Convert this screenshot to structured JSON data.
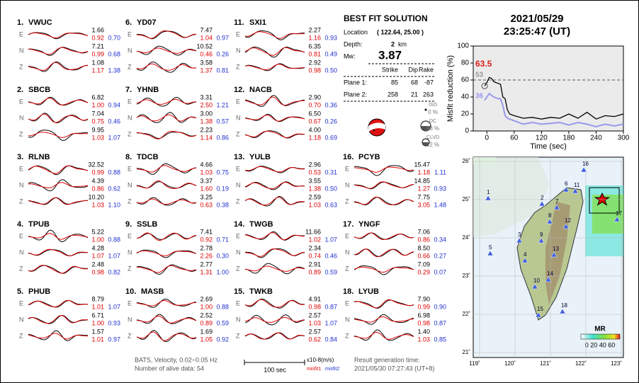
{
  "header": {
    "date": "2021/05/29",
    "time": "23:25:47  (UT)"
  },
  "stations": [
    {
      "id": "1.",
      "name": "VWUC",
      "components": [
        {
          "comp": "E",
          "amp": "1.66",
          "misfit1": "0.92",
          "misfit2": "0.70"
        },
        {
          "comp": "N",
          "amp": "7.21",
          "misfit1": "0.99",
          "misfit2": "0.68"
        },
        {
          "comp": "Z",
          "amp": "1.08",
          "misfit1": "1.17",
          "misfit2": "1.38"
        }
      ]
    },
    {
      "id": "2.",
      "name": "SBCB",
      "components": [
        {
          "comp": "E",
          "amp": "6.82",
          "misfit1": "1.00",
          "misfit2": "0.94"
        },
        {
          "comp": "N",
          "amp": "7.04",
          "misfit1": "0.75",
          "misfit2": "0.46"
        },
        {
          "comp": "Z",
          "amp": "9.95",
          "misfit1": "1.03",
          "misfit2": "1.07"
        }
      ]
    },
    {
      "id": "3.",
      "name": "RLNB",
      "components": [
        {
          "comp": "E",
          "amp": "32.52",
          "misfit1": "0.99",
          "misfit2": "0.88"
        },
        {
          "comp": "N",
          "amp": "4.39",
          "misfit1": "0.86",
          "misfit2": "0.62"
        },
        {
          "comp": "Z",
          "amp": "10.20",
          "misfit1": "1.03",
          "misfit2": "1.10"
        }
      ]
    },
    {
      "id": "4.",
      "name": "TPUB",
      "components": [
        {
          "comp": "E",
          "amp": "5.22",
          "misfit1": "1.00",
          "misfit2": "0.88"
        },
        {
          "comp": "N",
          "amp": "4.28",
          "misfit1": "1.07",
          "misfit2": "1.07"
        },
        {
          "comp": "Z",
          "amp": "2.48",
          "misfit1": "0.98",
          "misfit2": "0.82"
        }
      ]
    },
    {
      "id": "5.",
      "name": "PHUB",
      "components": [
        {
          "comp": "E",
          "amp": "8.79",
          "misfit1": "1.01",
          "misfit2": "1.07"
        },
        {
          "comp": "N",
          "amp": "6.71",
          "misfit1": "1.00",
          "misfit2": "0.93"
        },
        {
          "comp": "Z",
          "amp": "1.57",
          "misfit1": "1.01",
          "misfit2": "0.97"
        }
      ]
    },
    {
      "id": "6.",
      "name": "YD07",
      "components": [
        {
          "comp": "E",
          "amp": "7.47",
          "misfit1": "1.04",
          "misfit2": "0.97"
        },
        {
          "comp": "N",
          "amp": "10.52",
          "misfit1": "0.46",
          "misfit2": "0.26"
        },
        {
          "comp": "Z",
          "amp": "3.58",
          "misfit1": "1.37",
          "misfit2": "0.81"
        }
      ]
    },
    {
      "id": "7.",
      "name": "YHNB",
      "components": [
        {
          "comp": "E",
          "amp": "3.31",
          "misfit1": "2.50",
          "misfit2": "1.21"
        },
        {
          "comp": "N",
          "amp": "3.00",
          "misfit1": "1.38",
          "misfit2": "0.57"
        },
        {
          "comp": "Z",
          "amp": "2.23",
          "misfit1": "1.14",
          "misfit2": "0.86"
        }
      ]
    },
    {
      "id": "8.",
      "name": "TDCB",
      "components": [
        {
          "comp": "E",
          "amp": "4.66",
          "misfit1": "1.03",
          "misfit2": "0.75"
        },
        {
          "comp": "N",
          "amp": "3.37",
          "misfit1": "1.60",
          "misfit2": "0.19"
        },
        {
          "comp": "Z",
          "amp": "3.25",
          "misfit1": "0.63",
          "misfit2": "0.38"
        }
      ]
    },
    {
      "id": "9.",
      "name": "SSLB",
      "components": [
        {
          "comp": "E",
          "amp": "7.41",
          "misfit1": "0.92",
          "misfit2": "0.71"
        },
        {
          "comp": "N",
          "amp": "2.78",
          "misfit1": "2.26",
          "misfit2": "0.30"
        },
        {
          "comp": "Z",
          "amp": "2.77",
          "misfit1": "1.31",
          "misfit2": "1.00"
        }
      ]
    },
    {
      "id": "10.",
      "name": "MASB",
      "components": [
        {
          "comp": "E",
          "amp": "2.69",
          "misfit1": "1.00",
          "misfit2": "0.88"
        },
        {
          "comp": "N",
          "amp": "2.52",
          "misfit1": "0.89",
          "misfit2": "0.59"
        },
        {
          "comp": "Z",
          "amp": "1.69",
          "misfit1": "1.05",
          "misfit2": "0.92"
        }
      ]
    },
    {
      "id": "11.",
      "name": "SXI1",
      "components": [
        {
          "comp": "E",
          "amp": "2.27",
          "misfit1": "1.16",
          "misfit2": "0.93"
        },
        {
          "comp": "N",
          "amp": "6.35",
          "misfit1": "0.81",
          "misfit2": "0.49"
        },
        {
          "comp": "Z",
          "amp": "2.92",
          "misfit1": "0.98",
          "misfit2": "0.50"
        }
      ]
    },
    {
      "id": "12.",
      "name": "NACB",
      "components": [
        {
          "comp": "E",
          "amp": "2.90",
          "misfit1": "0.70",
          "misfit2": "0.36"
        },
        {
          "comp": "N",
          "amp": "6.50",
          "misfit1": "0.67",
          "misfit2": "0.26"
        },
        {
          "comp": "Z",
          "amp": "4.00",
          "misfit1": "1.18",
          "misfit2": "0.69"
        }
      ]
    },
    {
      "id": "13.",
      "name": "YULB",
      "components": [
        {
          "comp": "E",
          "amp": "2.96",
          "misfit1": "0.53",
          "misfit2": "0.31"
        },
        {
          "comp": "N",
          "amp": "3.55",
          "misfit1": "1.38",
          "misfit2": "0.50"
        },
        {
          "comp": "Z",
          "amp": "2.59",
          "misfit1": "1.03",
          "misfit2": "0.63"
        }
      ]
    },
    {
      "id": "14.",
      "name": "TWGB",
      "components": [
        {
          "comp": "E",
          "amp": "11.66",
          "misfit1": "1.02",
          "misfit2": "1.07"
        },
        {
          "comp": "N",
          "amp": "2.34",
          "misfit1": "0.74",
          "misfit2": "0.46"
        },
        {
          "comp": "Z",
          "amp": "2.91",
          "misfit1": "0.89",
          "misfit2": "0.59"
        }
      ]
    },
    {
      "id": "15.",
      "name": "TWKB",
      "components": [
        {
          "comp": "E",
          "amp": "4.91",
          "misfit1": "0.98",
          "misfit2": "0.87"
        },
        {
          "comp": "N",
          "amp": "2.57",
          "misfit1": "1.03",
          "misfit2": "1.07"
        },
        {
          "comp": "Z",
          "amp": "2.57",
          "misfit1": "0.62",
          "misfit2": "0.84"
        }
      ]
    },
    {
      "id": "16.",
      "name": "PCYB",
      "components": [
        {
          "comp": "E",
          "amp": "15.47",
          "misfit1": "1.18",
          "misfit2": "1.11"
        },
        {
          "comp": "N",
          "amp": "14.85",
          "misfit1": "1.27",
          "misfit2": "0.93"
        },
        {
          "comp": "Z",
          "amp": "7.75",
          "misfit1": "3.05",
          "misfit2": "1.48"
        }
      ]
    },
    {
      "id": "17.",
      "name": "YNGF",
      "components": [
        {
          "comp": "E",
          "amp": "7.06",
          "misfit1": "0.86",
          "misfit2": "0.34"
        },
        {
          "comp": "N",
          "amp": "8.50",
          "misfit1": "0.66",
          "misfit2": "0.27"
        },
        {
          "comp": "Z",
          "amp": "7.09",
          "misfit1": "0.29",
          "misfit2": "0.07"
        }
      ]
    },
    {
      "id": "18.",
      "name": "LYUB",
      "components": [
        {
          "comp": "E",
          "amp": "7.90",
          "misfit1": "0.99",
          "misfit2": "0.90"
        },
        {
          "comp": "N",
          "amp": "6.98",
          "misfit1": "0.98",
          "misfit2": "0.87"
        },
        {
          "comp": "Z",
          "amp": "1.40",
          "misfit1": "1.03",
          "misfit2": "0.85"
        }
      ]
    }
  ],
  "solution": {
    "title": "BEST FIT SOLUTION",
    "location_label": "Location",
    "location": "( 122.64, 25.00 )",
    "depth_label": "Depth:",
    "depth": "2",
    "depth_unit": "km",
    "mw_label": "Mw:",
    "mw": "3.87",
    "table": {
      "header": [
        "Strike",
        "Dip",
        "Rake"
      ],
      "rows": [
        {
          "label": "Plane 1:",
          "cells": [
            "85",
            "68",
            "-87"
          ]
        },
        {
          "label": "Plane 2:",
          "cells": [
            "258",
            "21",
            "263"
          ]
        }
      ]
    },
    "components": [
      {
        "name": "ISO",
        "pct": "0  %"
      },
      {
        "name": "DC",
        "pct": "88 %"
      },
      {
        "name": "CLVD",
        "pct": "12 %"
      }
    ]
  },
  "chart_data": {
    "type": "line",
    "x_label": "Time (sec)",
    "y_label": "Misfit reduction (%)",
    "x": [
      -5,
      0,
      5,
      10,
      15,
      20,
      25,
      30,
      35,
      40,
      45,
      50,
      60,
      80,
      100,
      120,
      140,
      160,
      180,
      200,
      220,
      240,
      260,
      280,
      300
    ],
    "series": [
      {
        "color": "#000000",
        "values": [
          53,
          57,
          63,
          62,
          58,
          57,
          56,
          55,
          40,
          38,
          25,
          20,
          18,
          15,
          16,
          14,
          16,
          15,
          20,
          15,
          22,
          14,
          18,
          17,
          20
        ]
      },
      {
        "color": "#9999ee",
        "values": [
          36,
          40,
          44,
          42,
          40,
          39,
          38,
          38,
          30,
          18,
          15,
          14,
          12,
          8,
          10,
          8,
          9,
          10,
          7,
          10,
          8,
          5,
          8,
          6,
          8
        ]
      }
    ],
    "annotations": [
      {
        "text": "63.5",
        "color": "#e02020"
      },
      {
        "text": "53",
        "color": "#999999"
      },
      {
        "text": "36",
        "color": "#9999ee"
      }
    ],
    "threshold": 60,
    "xlim": [
      -30,
      300
    ],
    "ylim": [
      0,
      100
    ],
    "xticks": [
      0,
      60,
      120,
      180,
      240,
      300
    ],
    "yticks": [
      0,
      20,
      40,
      60,
      80,
      100
    ]
  },
  "map": {
    "lon_ticks": [
      "119˚",
      "120˚",
      "121˚",
      "122˚",
      "123˚"
    ],
    "lat_ticks": [
      "26˚",
      "25˚",
      "24˚",
      "23˚",
      "22˚",
      "21˚"
    ],
    "stations": [
      "1",
      "2",
      "3",
      "4",
      "5",
      "6",
      "7",
      "8",
      "9",
      "10",
      "11",
      "12",
      "13",
      "14",
      "15",
      "16",
      "17",
      "18"
    ],
    "colorbar_title": "MR",
    "colorbar_labels": "0 20 40 60"
  },
  "footer": {
    "source": "BATS, Velocity, 0.02~0.05 Hz",
    "alive": "Number of alive data: 54",
    "scale": "100 sec",
    "units": "x10-8(m/s)",
    "misfit1": "misfit1",
    "misfit2": "misfit2",
    "gen_label": "Result generation time:",
    "gen_time": "2021/05/30 07:27:43 (UT+8)"
  }
}
